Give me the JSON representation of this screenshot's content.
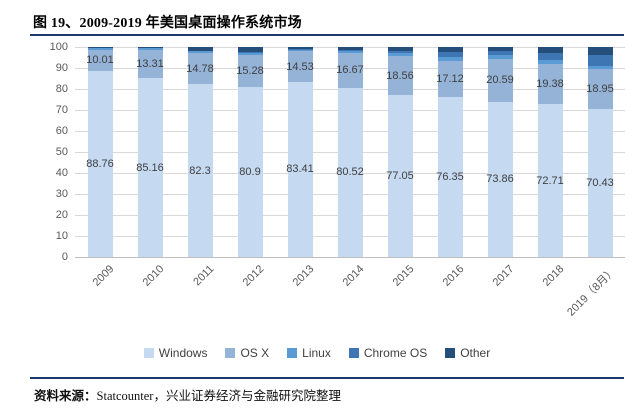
{
  "title": "图 19、2009-2019 年美国桌面操作系统市场",
  "footer": {
    "source_prefix": "资料来源：",
    "source_text": "Statcounter，兴业证券经济与金融研究院整理"
  },
  "colors": {
    "rule": "#1b3a6b",
    "gridline": "#d9d9d9",
    "axis_text": "#595959",
    "data_label_text": "#3f3f3f"
  },
  "chart_data": {
    "type": "bar",
    "stacked": true,
    "grid": true,
    "legend_position": "bottom",
    "ylim": [
      0,
      100
    ],
    "yticks": [
      0,
      10,
      20,
      30,
      40,
      50,
      60,
      70,
      80,
      90,
      100
    ],
    "categories": [
      "2009",
      "2010",
      "2011",
      "2012",
      "2013",
      "2014",
      "2015",
      "2016",
      "2017",
      "2018",
      "2019（8月）"
    ],
    "series": [
      {
        "name": "Windows",
        "color": "#c5d9f1",
        "values": [
          88.76,
          85.16,
          82.3,
          80.9,
          83.41,
          80.52,
          77.05,
          76.35,
          73.86,
          72.71,
          70.43
        ],
        "labels": [
          "88.76",
          "85.16",
          "82.3",
          "80.9",
          "83.41",
          "80.52",
          "77.05",
          "76.35",
          "73.86",
          "72.71",
          "70.43"
        ]
      },
      {
        "name": "OS X",
        "color": "#95b3d7",
        "values": [
          10.01,
          13.31,
          14.78,
          15.28,
          14.53,
          16.67,
          18.56,
          17.12,
          20.59,
          19.38,
          18.95
        ],
        "labels": [
          "10.01",
          "13.31",
          "14.78",
          "15.28",
          "14.53",
          "16.67",
          "18.56",
          "17.12",
          "20.59",
          "19.38",
          "18.95"
        ]
      },
      {
        "name": "Linux",
        "color": "#5b9bd5",
        "estimated": true,
        "values": [
          0.73,
          0.83,
          0.92,
          1.0,
          0.86,
          1.1,
          1.4,
          2.0,
          1.6,
          1.9,
          1.6
        ]
      },
      {
        "name": "Chrome OS",
        "color": "#3e76b3",
        "estimated": true,
        "values": [
          0,
          0,
          0,
          0.3,
          0.3,
          0.5,
          1.0,
          2.0,
          2.0,
          3.0,
          5.0
        ]
      },
      {
        "name": "Other",
        "color": "#254e7b",
        "estimated": true,
        "values": [
          0.5,
          0.7,
          2.0,
          2.52,
          0.9,
          1.21,
          1.99,
          2.53,
          1.95,
          3.01,
          4.02
        ]
      }
    ]
  }
}
